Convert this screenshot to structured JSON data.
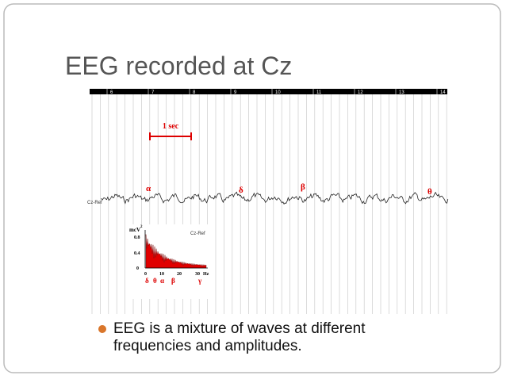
{
  "title": "EEG recorded at Cz",
  "figure": {
    "time_ruler": [
      "6",
      "7",
      "8",
      "9",
      "10",
      "11",
      "12",
      "13",
      "14"
    ],
    "scale_label": "1 sec",
    "channel_label": "Cz-Ref",
    "rhythm_labels": [
      "α",
      "δ",
      "β",
      "θ"
    ],
    "spectrum": {
      "y_unit": "mcV",
      "y_unit_sup": "2",
      "yticks": [
        "0.8",
        "0.4",
        "0"
      ],
      "xticks": [
        "0",
        "10",
        "20",
        "30"
      ],
      "x_unit": "Hz",
      "channel_label": "Cz-Ref",
      "bands": [
        "δ",
        "θ",
        "α",
        "β",
        "γ"
      ]
    }
  },
  "bullets": [
    "EEG is a mixture of waves at different frequencies and amplitudes."
  ]
}
